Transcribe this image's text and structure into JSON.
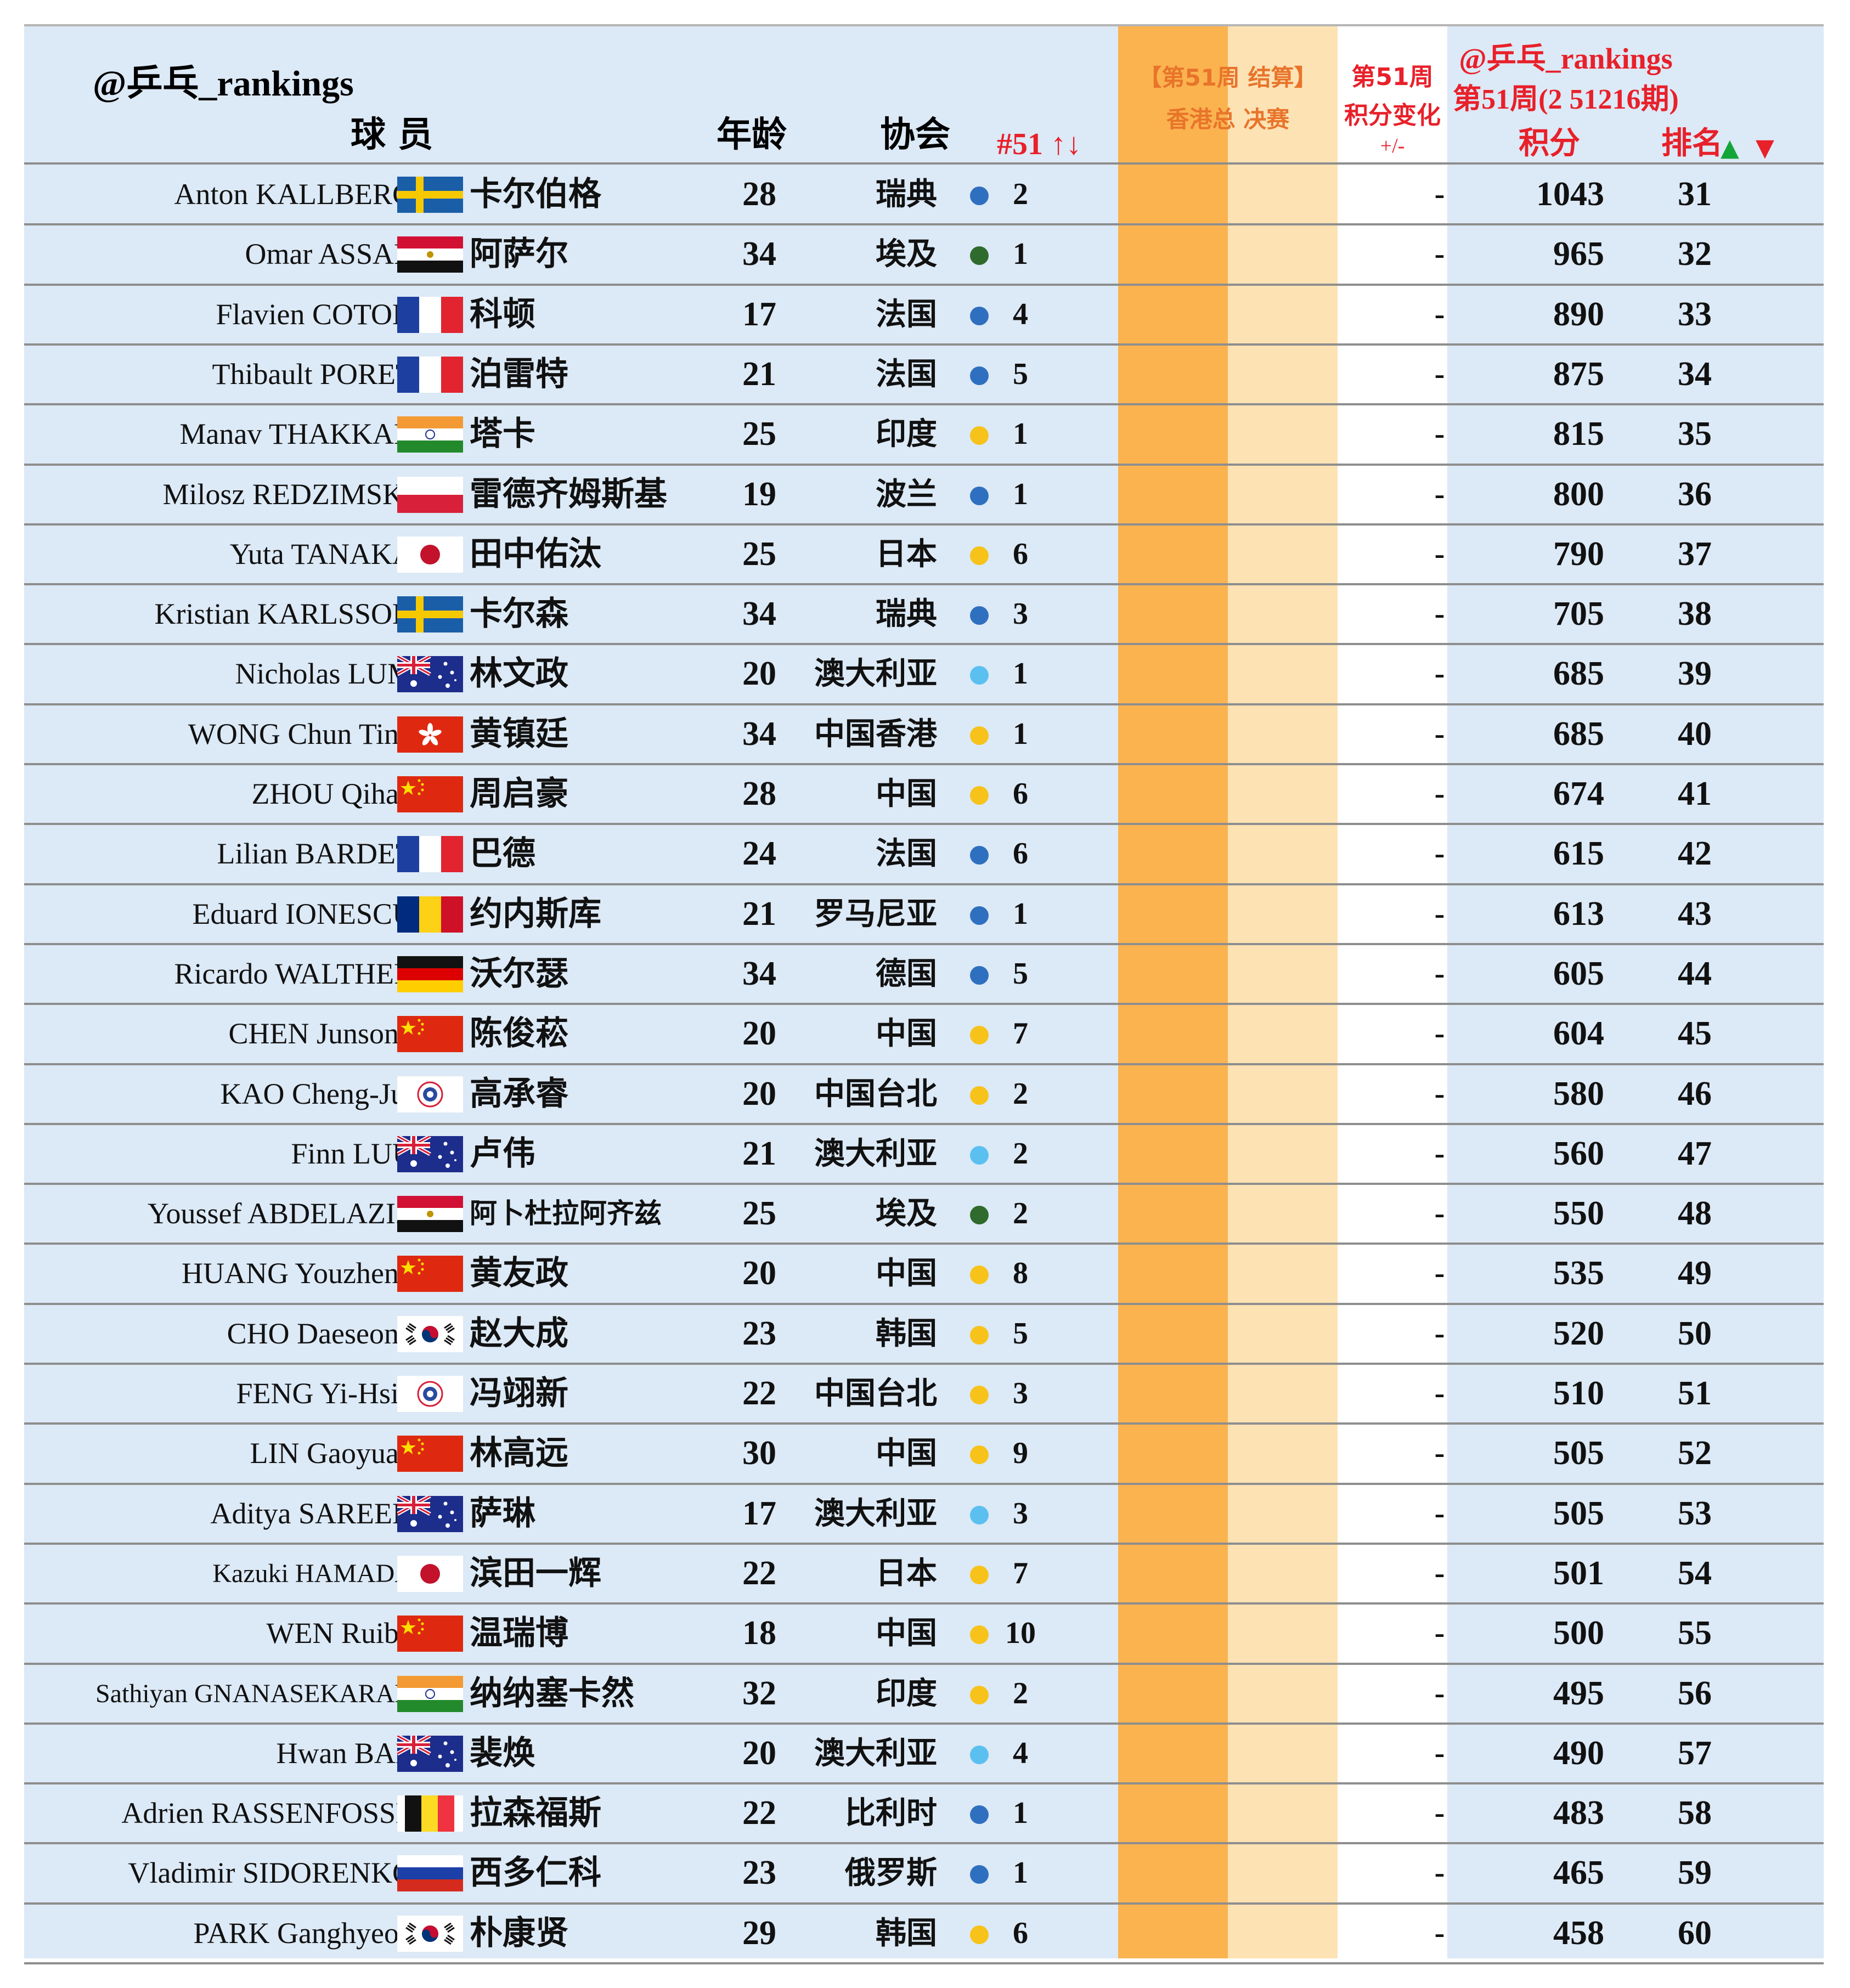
{
  "header": {
    "brand": "@乒乓_rankings",
    "col_player": "球 员",
    "col_age": "年龄",
    "col_assoc": "协会",
    "col_rank_change": "#51 ↑↓",
    "event_line1": "【第51周 结算】",
    "event_line2": "香港总 决赛",
    "change_line1": "第51周",
    "change_line2": "积分变化",
    "change_line3": "+/-",
    "right_line1": "@乒乓_rankings",
    "right_line2": "第51周(2 51216期)",
    "col_points": "积分",
    "col_rank": "排名",
    "up_arrow": "▲",
    "down_arrow": "▼"
  },
  "colors": {
    "blue": "#2f6fbf",
    "green": "#2e6b2c",
    "yellow": "#f7c31a",
    "lightblue": "#5bc0f0",
    "red_text": "#e8202a",
    "orange_band": "#fbb34f",
    "light_orange_band": "#fde2b4",
    "sheet_bg": "#dce9f6"
  },
  "rows": [
    {
      "en": "Anton KALLBERG",
      "flag": "sweden",
      "cn": "卡尔伯格",
      "age": "28",
      "assoc": "瑞典",
      "dot": "blue",
      "n": "2",
      "delta": "-",
      "pts": "1043",
      "rank": "31"
    },
    {
      "en": "Omar ASSAR",
      "flag": "egypt",
      "cn": "阿萨尔",
      "age": "34",
      "assoc": "埃及",
      "dot": "green",
      "n": "1",
      "delta": "-",
      "pts": "965",
      "rank": "32"
    },
    {
      "en": "Flavien COTON",
      "flag": "france",
      "cn": "科顿",
      "age": "17",
      "assoc": "法国",
      "dot": "blue",
      "n": "4",
      "delta": "-",
      "pts": "890",
      "rank": "33"
    },
    {
      "en": "Thibault PORET",
      "flag": "france",
      "cn": "泊雷特",
      "age": "21",
      "assoc": "法国",
      "dot": "blue",
      "n": "5",
      "delta": "-",
      "pts": "875",
      "rank": "34"
    },
    {
      "en": "Manav THAKKAR",
      "flag": "india",
      "cn": "塔卡",
      "age": "25",
      "assoc": "印度",
      "dot": "yellow",
      "n": "1",
      "delta": "-",
      "pts": "815",
      "rank": "35"
    },
    {
      "en": "Milosz REDZIMSKI",
      "flag": "poland",
      "cn": "雷德齐姆斯基",
      "age": "19",
      "assoc": "波兰",
      "dot": "blue",
      "n": "1",
      "delta": "-",
      "pts": "800",
      "rank": "36"
    },
    {
      "en": "Yuta TANAKA",
      "flag": "japan",
      "cn": "田中佑汰",
      "age": "25",
      "assoc": "日本",
      "dot": "yellow",
      "n": "6",
      "delta": "-",
      "pts": "790",
      "rank": "37"
    },
    {
      "en": "Kristian KARLSSON",
      "flag": "sweden",
      "cn": "卡尔森",
      "age": "34",
      "assoc": "瑞典",
      "dot": "blue",
      "n": "3",
      "delta": "-",
      "pts": "705",
      "rank": "38"
    },
    {
      "en": "Nicholas LUM",
      "flag": "australia",
      "cn": "林文政",
      "age": "20",
      "assoc": "澳大利亚",
      "dot": "lightblue",
      "n": "1",
      "delta": "-",
      "pts": "685",
      "rank": "39"
    },
    {
      "en": "WONG Chun Ting",
      "flag": "hongkong",
      "cn": "黄镇廷",
      "age": "34",
      "assoc": "中国香港",
      "dot": "yellow",
      "n": "1",
      "delta": "-",
      "pts": "685",
      "rank": "40"
    },
    {
      "en": "ZHOU Qihao",
      "flag": "china",
      "cn": "周启豪",
      "age": "28",
      "assoc": "中国",
      "dot": "yellow",
      "n": "6",
      "delta": "-",
      "pts": "674",
      "rank": "41"
    },
    {
      "en": "Lilian BARDET",
      "flag": "france",
      "cn": "巴德",
      "age": "24",
      "assoc": "法国",
      "dot": "blue",
      "n": "6",
      "delta": "-",
      "pts": "615",
      "rank": "42"
    },
    {
      "en": "Eduard IONESCU",
      "flag": "romania",
      "cn": "约内斯库",
      "age": "21",
      "assoc": "罗马尼亚",
      "dot": "blue",
      "n": "1",
      "delta": "-",
      "pts": "613",
      "rank": "43"
    },
    {
      "en": "Ricardo WALTHER",
      "flag": "germany",
      "cn": "沃尔瑟",
      "age": "34",
      "assoc": "德国",
      "dot": "blue",
      "n": "5",
      "delta": "-",
      "pts": "605",
      "rank": "44"
    },
    {
      "en": "CHEN Junsong",
      "flag": "china",
      "cn": "陈俊菘",
      "age": "20",
      "assoc": "中国",
      "dot": "yellow",
      "n": "7",
      "delta": "-",
      "pts": "604",
      "rank": "45"
    },
    {
      "en": "KAO Cheng-Jui",
      "flag": "tpe",
      "cn": "高承睿",
      "age": "20",
      "assoc": "中国台北",
      "dot": "yellow",
      "n": "2",
      "delta": "-",
      "pts": "580",
      "rank": "46"
    },
    {
      "en": "Finn LUU",
      "flag": "australia",
      "cn": "卢伟",
      "age": "21",
      "assoc": "澳大利亚",
      "dot": "lightblue",
      "n": "2",
      "delta": "-",
      "pts": "560",
      "rank": "47"
    },
    {
      "en": "Youssef ABDELAZIZ",
      "flag": "egypt",
      "cn": "阿卜杜拉阿齐兹",
      "age": "25",
      "assoc": "埃及",
      "dot": "green",
      "n": "2",
      "delta": "-",
      "pts": "550",
      "rank": "48",
      "small": true
    },
    {
      "en": "HUANG Youzheng",
      "flag": "china",
      "cn": "黄友政",
      "age": "20",
      "assoc": "中国",
      "dot": "yellow",
      "n": "8",
      "delta": "-",
      "pts": "535",
      "rank": "49"
    },
    {
      "en": "CHO Daeseong",
      "flag": "korea",
      "cn": "赵大成",
      "age": "23",
      "assoc": "韩国",
      "dot": "yellow",
      "n": "5",
      "delta": "-",
      "pts": "520",
      "rank": "50"
    },
    {
      "en": "FENG Yi-Hsin",
      "flag": "tpe",
      "cn": "冯翊新",
      "age": "22",
      "assoc": "中国台北",
      "dot": "yellow",
      "n": "3",
      "delta": "-",
      "pts": "510",
      "rank": "51"
    },
    {
      "en": "LIN Gaoyuan",
      "flag": "china",
      "cn": "林高远",
      "age": "30",
      "assoc": "中国",
      "dot": "yellow",
      "n": "9",
      "delta": "-",
      "pts": "505",
      "rank": "52"
    },
    {
      "en": "Aditya SAREEN",
      "flag": "australia",
      "cn": "萨琳",
      "age": "17",
      "assoc": "澳大利亚",
      "dot": "lightblue",
      "n": "3",
      "delta": "-",
      "pts": "505",
      "rank": "53"
    },
    {
      "en": "Kazuki HAMADA",
      "flag": "japan",
      "cn": "滨田一辉",
      "age": "22",
      "assoc": "日本",
      "dot": "yellow",
      "n": "7",
      "delta": "-",
      "pts": "501",
      "rank": "54",
      "en_small": true
    },
    {
      "en": "WEN Ruibo",
      "flag": "china",
      "cn": "温瑞博",
      "age": "18",
      "assoc": "中国",
      "dot": "yellow",
      "n": "10",
      "delta": "-",
      "pts": "500",
      "rank": "55"
    },
    {
      "en": "Sathiyan GNANASEKARAN",
      "flag": "india",
      "cn": "纳纳塞卡然",
      "age": "32",
      "assoc": "印度",
      "dot": "yellow",
      "n": "2",
      "delta": "-",
      "pts": "495",
      "rank": "56",
      "en_small": true
    },
    {
      "en": "Hwan BAE",
      "flag": "australia",
      "cn": "裴焕",
      "age": "20",
      "assoc": "澳大利亚",
      "dot": "lightblue",
      "n": "4",
      "delta": "-",
      "pts": "490",
      "rank": "57"
    },
    {
      "en": "Adrien RASSENFOSSE",
      "flag": "belgium",
      "cn": "拉森福斯",
      "age": "22",
      "assoc": "比利时",
      "dot": "blue",
      "n": "1",
      "delta": "-",
      "pts": "483",
      "rank": "58"
    },
    {
      "en": "Vladimir SIDORENKO",
      "flag": "russia",
      "cn": "西多仁科",
      "age": "23",
      "assoc": "俄罗斯",
      "dot": "blue",
      "n": "1",
      "delta": "-",
      "pts": "465",
      "rank": "59"
    },
    {
      "en": "PARK Ganghyeon",
      "flag": "korea",
      "cn": "朴康贤",
      "age": "29",
      "assoc": "韩国",
      "dot": "yellow",
      "n": "6",
      "delta": "-",
      "pts": "458",
      "rank": "60"
    }
  ]
}
